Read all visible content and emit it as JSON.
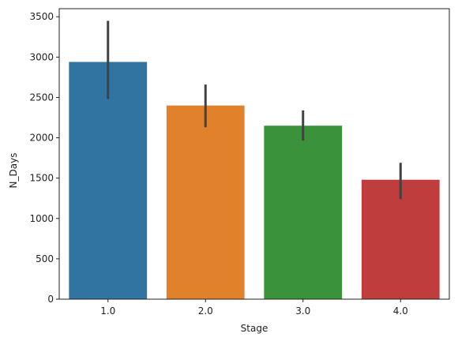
{
  "chart_data": {
    "type": "bar",
    "categories": [
      "1.0",
      "2.0",
      "3.0",
      "4.0"
    ],
    "values": [
      2940,
      2400,
      2150,
      1480
    ],
    "error_low": [
      2480,
      2130,
      1965,
      1240
    ],
    "error_high": [
      3450,
      2660,
      2340,
      1690
    ],
    "colors": [
      "#3274a1",
      "#e1812c",
      "#3a923a",
      "#c03d3e"
    ],
    "error_color": "#424242",
    "xlabel": "Stage",
    "ylabel": "N_Days",
    "ylim": [
      0,
      3600
    ],
    "yticks": [
      0,
      500,
      1000,
      1500,
      2000,
      2500,
      3000,
      3500
    ],
    "grid": false,
    "legend": "none"
  }
}
